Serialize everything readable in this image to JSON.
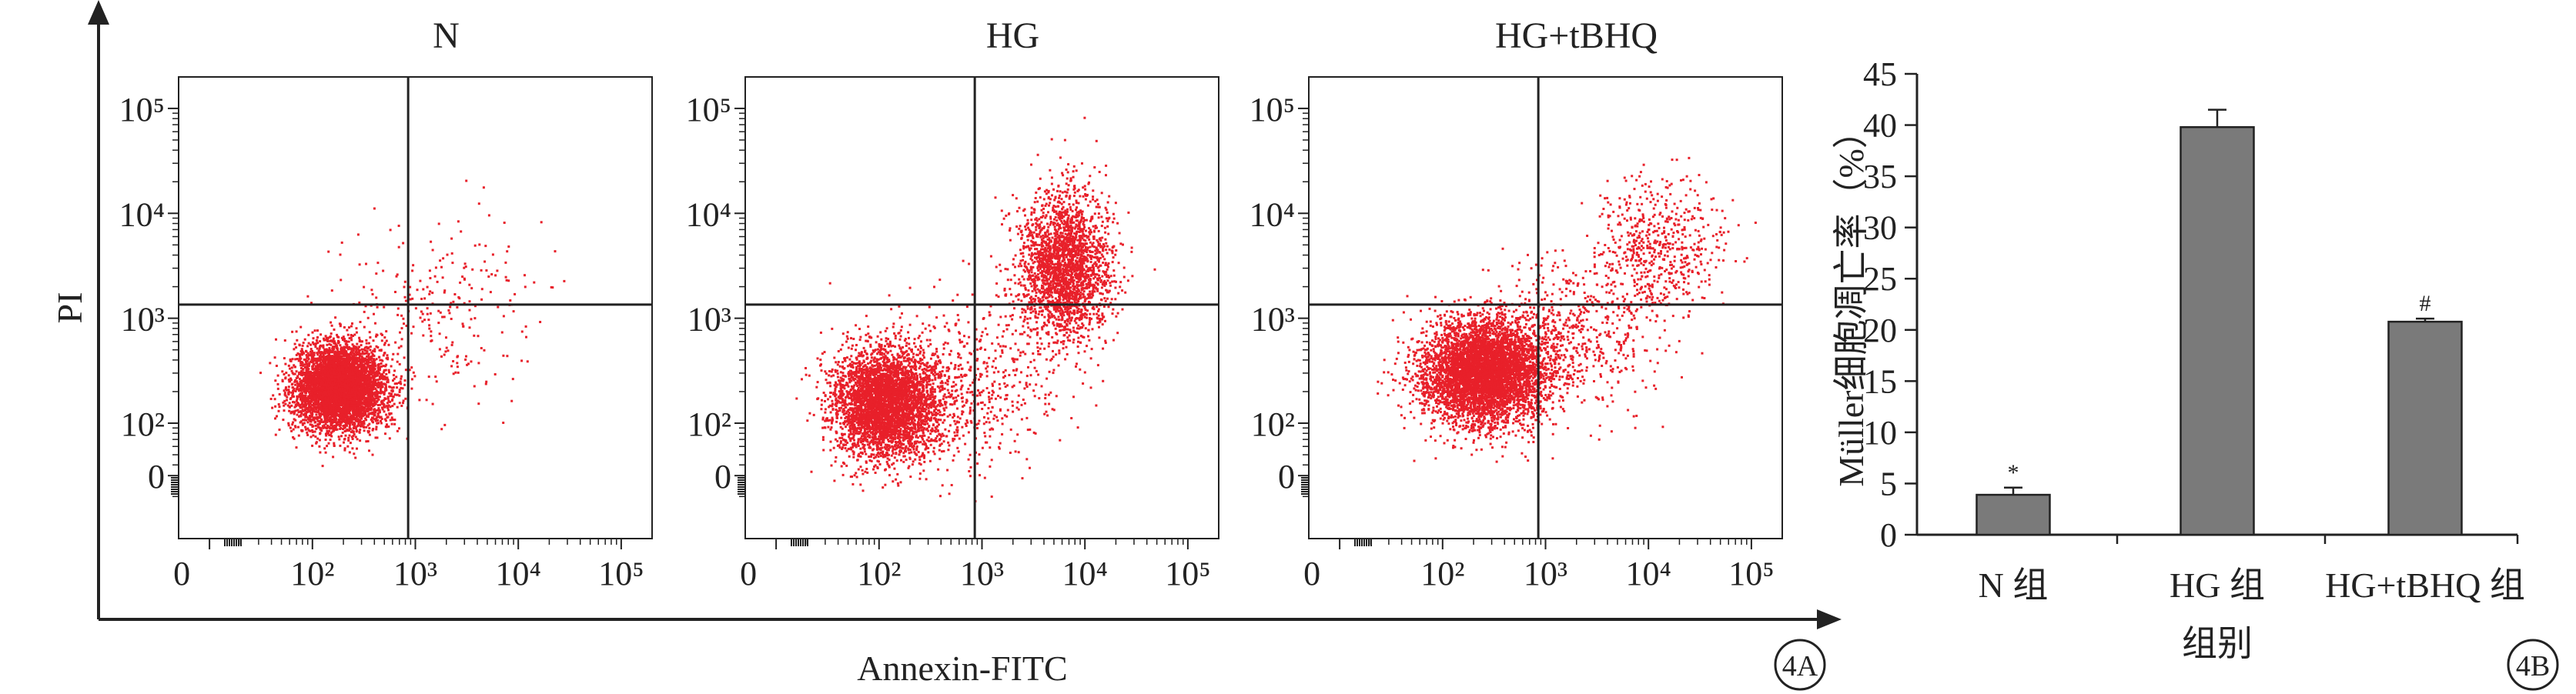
{
  "figure": {
    "x_axis_label": "Annexin-FITC",
    "y_axis_label": "PI",
    "label_4a": "4A",
    "label_4b": "4B"
  },
  "colors": {
    "dots": "#e8202a",
    "bar": "#7a7a7a",
    "axis": "#222222"
  },
  "chart_data": [
    {
      "type": "scatter",
      "panels": [
        {
          "title": "N",
          "cluster": [
            {
              "x_log": 2.25,
              "y_log": 2.35,
              "n": 5200,
              "sx": 0.22,
              "sy": 0.2
            },
            {
              "x_log": 3.2,
              "y_log": 3.1,
              "n": 260,
              "sx": 0.45,
              "sy": 0.4
            }
          ]
        },
        {
          "title": "HG",
          "cluster": [
            {
              "x_log": 2.05,
              "y_log": 2.2,
              "n": 4000,
              "sx": 0.25,
              "sy": 0.25
            },
            {
              "x_log": 3.8,
              "y_log": 3.5,
              "n": 2400,
              "sx": 0.22,
              "sy": 0.35
            },
            {
              "x_log": 2.8,
              "y_log": 2.4,
              "n": 600,
              "sx": 0.45,
              "sy": 0.4
            }
          ]
        },
        {
          "title": "HG+tBHQ",
          "cluster": [
            {
              "x_log": 2.4,
              "y_log": 2.5,
              "n": 5200,
              "sx": 0.3,
              "sy": 0.25
            },
            {
              "x_log": 4.1,
              "y_log": 3.7,
              "n": 550,
              "sx": 0.3,
              "sy": 0.3
            },
            {
              "x_log": 3.3,
              "y_log": 2.9,
              "n": 600,
              "sx": 0.45,
              "sy": 0.35
            }
          ]
        }
      ],
      "x_ticks": [
        "0",
        "10²",
        "10³",
        "10⁴",
        "10⁵"
      ],
      "y_ticks": [
        "0",
        "10²",
        "10³",
        "10⁴",
        "10⁵"
      ],
      "quadrant_gate": {
        "x_log": 2.93,
        "y_log": 3.13
      }
    },
    {
      "type": "bar",
      "categories": [
        "N 组",
        "HG 组",
        "HG+tBHQ 组"
      ],
      "values": [
        3.9,
        39.8,
        20.8
      ],
      "errors": [
        0.7,
        1.7,
        0.3
      ],
      "annotations": [
        "*",
        "",
        "#"
      ],
      "ylabel": "Müller细胞凋亡率（%）",
      "xlabel": "组别",
      "ylim": [
        0,
        45
      ],
      "yticks": [
        0,
        5,
        10,
        15,
        20,
        25,
        30,
        35,
        40,
        45
      ]
    }
  ]
}
